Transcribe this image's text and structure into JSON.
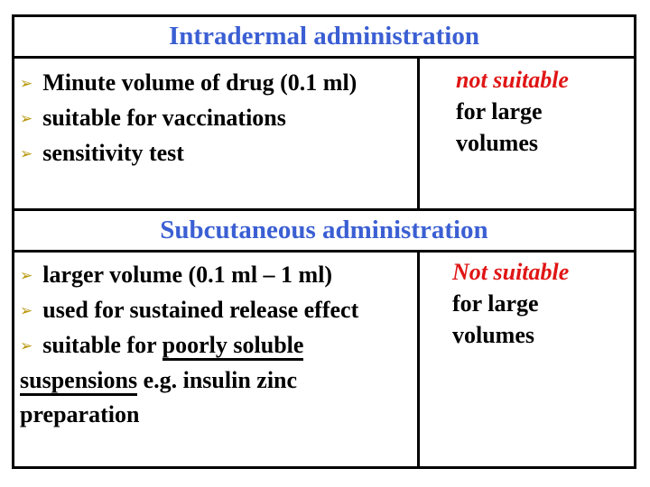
{
  "colors": {
    "title_blue": "#3b5fd3",
    "note_red": "#e01515",
    "bullet_gold": "#b8960b",
    "text_black": "#000000",
    "border_black": "#000000",
    "background_white": "#ffffff"
  },
  "bullet_icon": "➢",
  "tables": [
    {
      "title": "Intradermal administration",
      "items": [
        {
          "text": "Minute volume of drug (0.1 ml)"
        },
        {
          "text": "suitable for vaccinations"
        },
        {
          "text": "sensitivity test"
        }
      ],
      "note": {
        "emphasis": "not suitable",
        "lines": [
          "for large",
          "volumes"
        ]
      }
    },
    {
      "title": "Subcutaneous administration",
      "items": [
        {
          "text": "larger volume (0.1 ml – 1 ml)"
        },
        {
          "text": "used for sustained release effect"
        },
        {
          "pre": "suitable for ",
          "underlined": "poorly soluble suspensions",
          "post": " e.g. insulin zinc preparation"
        }
      ],
      "note": {
        "emphasis": "Not suitable",
        "lines": [
          "for large",
          "volumes"
        ]
      }
    }
  ]
}
